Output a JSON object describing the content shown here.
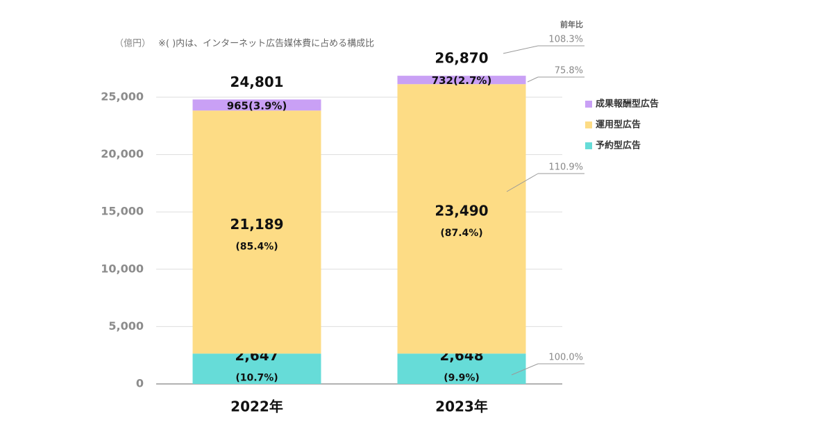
{
  "chart_data": {
    "type": "stacked_bar",
    "unit": "（億円）",
    "note": "※( )内は、インターネット広告媒体費に占める構成比",
    "categories": [
      "2022年",
      "2023年"
    ],
    "series": [
      {
        "name": "予約型広告",
        "color": "#66dcd8",
        "values": [
          2647,
          2648
        ],
        "value_labels": [
          "2,647",
          "2,648"
        ],
        "shares": [
          "(10.7%)",
          "(9.9%)"
        ],
        "yoy": "100.0%"
      },
      {
        "name": "運用型広告",
        "color": "#fddc85",
        "values": [
          21189,
          23490
        ],
        "value_labels": [
          "21,189",
          "23,490"
        ],
        "shares": [
          "(85.4%)",
          "(87.4%)"
        ],
        "yoy": "110.9%"
      },
      {
        "name": "成果報酬型広告",
        "color": "#c9a0f5",
        "values": [
          965,
          732
        ],
        "value_labels": [
          "965",
          "732"
        ],
        "shares": [
          "(3.9%)",
          "(2.7%)"
        ],
        "yoy": "75.8%"
      }
    ],
    "totals": [
      24801,
      26870
    ],
    "total_labels": [
      "24,801",
      "26,870"
    ],
    "yoy_title": "前年比",
    "total_yoy": "108.3%",
    "ylim": [
      0,
      27500
    ],
    "yticks": [
      0,
      {
        "value": 5000,
        "label": "5,000"
      },
      {
        "value": 10000,
        "label": "10,000"
      },
      {
        "value": 15000,
        "label": "15,000"
      },
      {
        "value": 20000,
        "label": "20,000"
      },
      {
        "value": 25000,
        "label": "25,000"
      }
    ],
    "grid": true,
    "legend": "right"
  }
}
